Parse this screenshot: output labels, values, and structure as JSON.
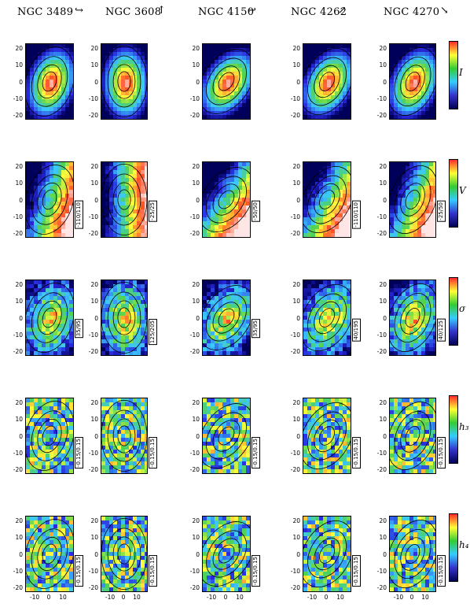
{
  "figure": {
    "galaxies": [
      {
        "name": "NGC 3489",
        "arrow": "↪"
      },
      {
        "name": "NGC 3608",
        "arrow": "↑"
      },
      {
        "name": "NGC 4150",
        "arrow": "↩"
      },
      {
        "name": "NGC 4262",
        "arrow": "↗"
      },
      {
        "name": "NGC 4270",
        "arrow": "↘"
      }
    ],
    "quantities": [
      {
        "label": "I",
        "colormap": "intensity"
      },
      {
        "label": "V",
        "colormap": "velocity"
      },
      {
        "label": "σ",
        "colormap": "dispersion"
      },
      {
        "label": "h₃",
        "colormap": "h3"
      },
      {
        "label": "h₄",
        "colormap": "h4"
      }
    ],
    "ranges": [
      [
        "",
        "",
        "",
        "",
        ""
      ],
      [
        "-110/110",
        "-25/25",
        "-50/50",
        "-110/110",
        "-25/50"
      ],
      [
        "35/95",
        "125/205",
        "35/95",
        "40/195",
        "40/125"
      ],
      [
        "-0.15/0.15",
        "-0.15/0.15",
        "-0.15/0.15",
        "-0.15/0.15",
        "-0.15/0.15"
      ],
      [
        "-0.15/0.15",
        "-0.15/0.15",
        "-0.15/0.15",
        "-0.15/0.15",
        "-0.15/0.15"
      ]
    ],
    "y_ticks": [
      "20",
      "10",
      "0",
      "-10",
      "-20"
    ],
    "x_ticks": [
      "-10",
      "0",
      "10"
    ],
    "colorbar_colors": [
      "#ff2a2a",
      "#ffff33",
      "#33cc33",
      "#33ccff",
      "#3333cc",
      "#000055"
    ]
  }
}
